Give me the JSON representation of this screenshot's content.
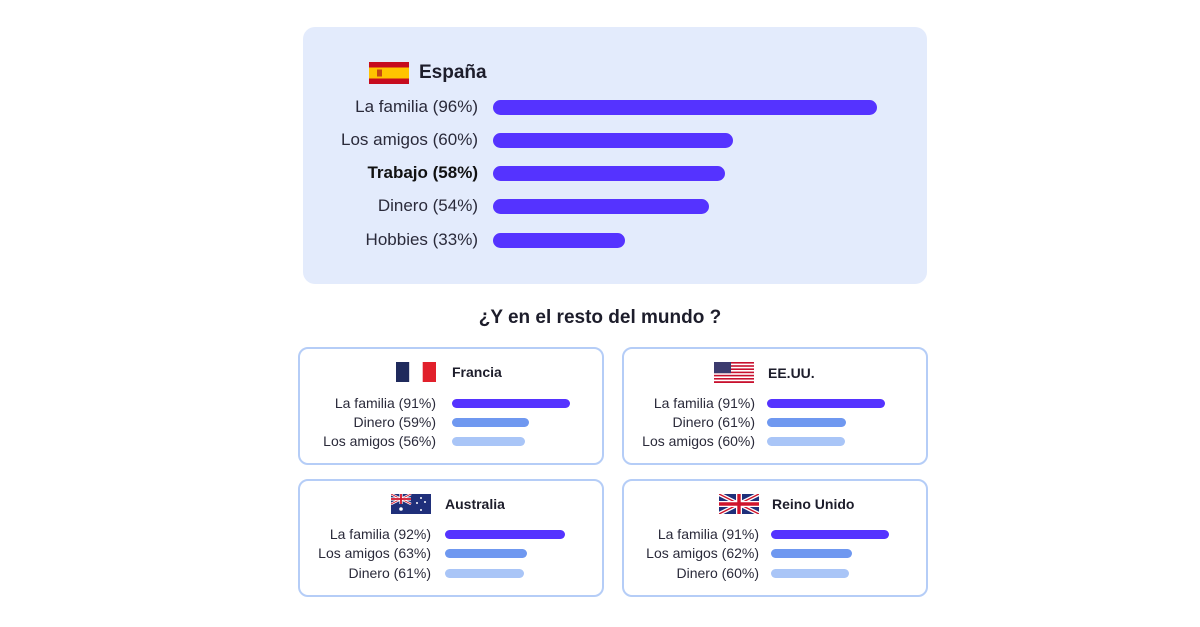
{
  "main": {
    "country": "España",
    "flag": "spain-flag",
    "items": [
      {
        "label": "La familia (96%)",
        "value": 96,
        "bold": false
      },
      {
        "label": "Los amigos (60%)",
        "value": 60,
        "bold": false
      },
      {
        "label": "Trabajo (58%)",
        "value": 58,
        "bold": true
      },
      {
        "label": "Dinero (54%)",
        "value": 54,
        "bold": false
      },
      {
        "label": "Hobbies (33%)",
        "value": 33,
        "bold": false
      }
    ]
  },
  "subtitle": "¿Y en el resto del mundo ?",
  "cards": [
    {
      "country": "Francia",
      "flag": "france-flag",
      "items": [
        {
          "label": "La familia (91%)",
          "value": 91
        },
        {
          "label": "Dinero (59%)",
          "value": 59
        },
        {
          "label": "Los amigos (56%)",
          "value": 56
        }
      ]
    },
    {
      "country": "EE.UU.",
      "flag": "usa-flag",
      "items": [
        {
          "label": "La familia (91%)",
          "value": 91
        },
        {
          "label": "Dinero (61%)",
          "value": 61
        },
        {
          "label": "Los amigos (60%)",
          "value": 60
        }
      ]
    },
    {
      "country": "Australia",
      "flag": "australia-flag",
      "items": [
        {
          "label": "La familia (92%)",
          "value": 92
        },
        {
          "label": "Los amigos (63%)",
          "value": 63
        },
        {
          "label": "Dinero (61%)",
          "value": 61
        }
      ]
    },
    {
      "country": "Reino Unido",
      "flag": "uk-flag",
      "items": [
        {
          "label": "La familia (91%)",
          "value": 91
        },
        {
          "label": "Los amigos (62%)",
          "value": 62
        },
        {
          "label": "Dinero (60%)",
          "value": 60
        }
      ]
    }
  ],
  "colors": {
    "primary": "#5533ff",
    "secondary": "#6f98f0",
    "tertiary": "#a9c5f7",
    "panel": "#e3ebfc",
    "card_border": "#b5cdf7"
  },
  "chart_data": [
    {
      "type": "bar",
      "title": "España",
      "categories": [
        "La familia",
        "Los amigos",
        "Trabajo",
        "Dinero",
        "Hobbies"
      ],
      "values": [
        96,
        60,
        58,
        54,
        33
      ],
      "xlim": [
        0,
        100
      ]
    },
    {
      "type": "bar",
      "title": "Francia",
      "categories": [
        "La familia",
        "Dinero",
        "Los amigos"
      ],
      "values": [
        91,
        59,
        56
      ],
      "xlim": [
        0,
        100
      ]
    },
    {
      "type": "bar",
      "title": "EE.UU.",
      "categories": [
        "La familia",
        "Dinero",
        "Los amigos"
      ],
      "values": [
        91,
        61,
        60
      ],
      "xlim": [
        0,
        100
      ]
    },
    {
      "type": "bar",
      "title": "Australia",
      "categories": [
        "La familia",
        "Los amigos",
        "Dinero"
      ],
      "values": [
        92,
        63,
        61
      ],
      "xlim": [
        0,
        100
      ]
    },
    {
      "type": "bar",
      "title": "Reino Unido",
      "categories": [
        "La familia",
        "Los amigos",
        "Dinero"
      ],
      "values": [
        91,
        62,
        60
      ],
      "xlim": [
        0,
        100
      ]
    }
  ]
}
